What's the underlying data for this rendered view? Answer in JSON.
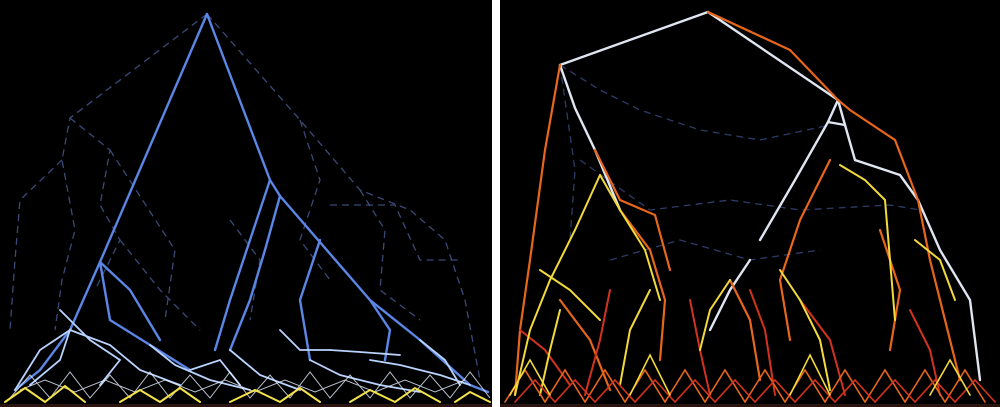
{
  "figure": {
    "panels": [
      {
        "id": "left",
        "description_tag": "form-diagram",
        "palette": {
          "primary": "#5b86e5",
          "light": "#b9d3ff",
          "pale": "#e6f0ff",
          "accent": "#f4e24a",
          "dashed": "#3a4a78"
        }
      },
      {
        "id": "right",
        "description_tag": "force-diagram",
        "palette": {
          "white": "#dfe6f2",
          "orange": "#e8661c",
          "red": "#d2321e",
          "yellow": "#f2da3a",
          "dashed": "#2e3b66"
        }
      }
    ]
  }
}
